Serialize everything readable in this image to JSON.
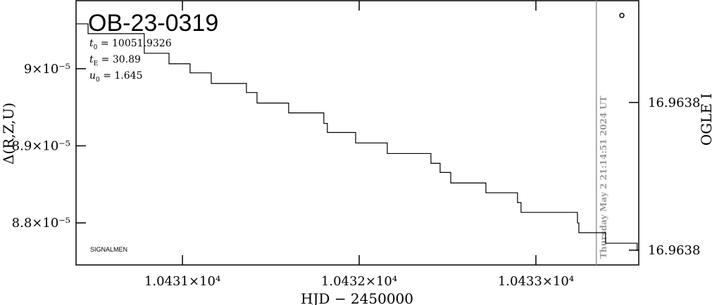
{
  "chart_data": {
    "type": "line",
    "title": "OB-23-0319",
    "parameters": [
      {
        "symbol": "t",
        "sub": "0",
        "text": " = 10051.9326"
      },
      {
        "symbol": "t",
        "sub": "E",
        "text": " = 30.89"
      },
      {
        "symbol": "u",
        "sub": "0",
        "text": " = 1.645"
      }
    ],
    "credit": "SIGNALMEN",
    "now_line": {
      "x": 10433.342,
      "label": "Thursday May  2 21:14:51 2024 UT",
      "color": "#999999"
    },
    "xlabel": "HJD − 2450000",
    "ylabel": "Δ(R,Z,U)",
    "y2label": "OGLE I",
    "xlim": [
      10430.398,
      10433.582
    ],
    "xticks": [
      {
        "value": 10431,
        "label": "1.0431×10⁴"
      },
      {
        "value": 10432,
        "label": "1.0432×10⁴"
      },
      {
        "value": 10433,
        "label": "1.0433×10⁴"
      }
    ],
    "ylim": [
      8.7455e-05,
      9.0882e-05
    ],
    "yticks": [
      {
        "value": 9e-05,
        "label": "9×10⁻⁵"
      },
      {
        "value": 8.9e-05,
        "label": "8.9×10⁻⁵"
      },
      {
        "value": 8.8e-05,
        "label": "8.8×10⁻⁵"
      }
    ],
    "y2lim": [
      16.963849,
      16.963688
    ],
    "y2ticks": [
      {
        "value": 16.96375,
        "label": "16.9638"
      },
      {
        "value": 16.96384,
        "label": "16.9638"
      }
    ],
    "series": [
      {
        "color": "#000000",
        "x": [
          10430.398,
          10430.466,
          10430.466,
          10430.784,
          10430.784,
          10430.924,
          10430.924,
          10431.043,
          10431.043,
          10431.163,
          10431.163,
          10431.362,
          10431.362,
          10431.422,
          10431.422,
          10431.601,
          10431.601,
          10431.8,
          10431.8,
          10431.82,
          10431.82,
          10431.98,
          10431.98,
          10432.159,
          10432.159,
          10432.406,
          10432.406,
          10432.458,
          10432.458,
          10432.518,
          10432.518,
          10432.717,
          10432.717,
          10432.896,
          10432.896,
          10432.916,
          10432.916,
          10433.235,
          10433.235,
          10433.243,
          10433.243,
          10433.394,
          10433.394,
          10433.573,
          10433.573
        ],
        "values": [
          9.0582e-05,
          9.0582e-05,
          9.0455e-05,
          9.0455e-05,
          9.02e-05,
          9.02e-05,
          9.0064e-05,
          9.0064e-05,
          8.9946e-05,
          8.9946e-05,
          8.9809e-05,
          8.9809e-05,
          8.9691e-05,
          8.9691e-05,
          8.9555e-05,
          8.9555e-05,
          8.9427e-05,
          8.9427e-05,
          8.9291e-05,
          8.9291e-05,
          8.9173e-05,
          8.9173e-05,
          8.9037e-05,
          8.9037e-05,
          8.89e-05,
          8.89e-05,
          8.8773e-05,
          8.8773e-05,
          8.8655e-05,
          8.8655e-05,
          8.8518e-05,
          8.8518e-05,
          8.8391e-05,
          8.8391e-05,
          8.8264e-05,
          8.8264e-05,
          8.8137e-05,
          8.8137e-05,
          8.8e-05,
          8.8e-05,
          8.7873e-05,
          8.7873e-05,
          8.7737e-05,
          8.7737e-05,
          8.7637e-05
        ]
      }
    ]
  }
}
